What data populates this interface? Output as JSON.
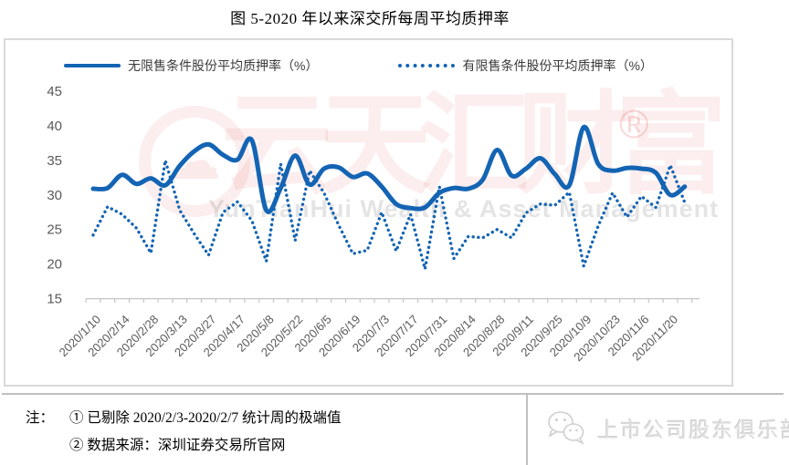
{
  "title": "图 5-2020 年以来深交所每周平均质押率",
  "chart_data": {
    "type": "line",
    "title": "图 5-2020 年以来深交所每周平均质押率",
    "ylim": [
      15,
      45
    ],
    "yticks": [
      15,
      20,
      25,
      30,
      35,
      40,
      45
    ],
    "grid": false,
    "legend_position": "top",
    "x_tick_labels": [
      "2020/1/10",
      "2020/2/14",
      "2020/2/28",
      "2020/3/13",
      "2020/3/27",
      "2020/4/17",
      "2020/5/8",
      "2020/5/22",
      "2020/6/5",
      "2020/6/19",
      "2020/7/3",
      "2020/7/17",
      "2020/7/31",
      "2020/8/14",
      "2020/8/28",
      "2020/9/11",
      "2020/9/25",
      "2020/10/9",
      "2020/10/23",
      "2020/11/6",
      "2020/11/20"
    ],
    "points_per_label": 2,
    "series": [
      {
        "name": "无限售条件股份平均质押率（%）",
        "style": "solid",
        "values": [
          30.9,
          31.0,
          32.9,
          31.6,
          32.4,
          31.4,
          34.2,
          36.3,
          37.3,
          35.8,
          35.1,
          37.9,
          27.8,
          31.0,
          35.7,
          31.5,
          33.8,
          34.0,
          32.6,
          33.1,
          31.2,
          28.7,
          28.1,
          28.2,
          30.3,
          31.0,
          30.9,
          32.2,
          36.5,
          32.8,
          33.8,
          35.3,
          33.0,
          31.4,
          39.8,
          34.5,
          33.5,
          33.9,
          33.8,
          33.2,
          30.0,
          31.2
        ]
      },
      {
        "name": "有限售条件股份平均质押率（%）",
        "style": "dotted",
        "values": [
          24.2,
          28.3,
          27.2,
          25.2,
          21.6,
          35.0,
          27.8,
          24.4,
          21.3,
          27.5,
          29.0,
          26.3,
          20.4,
          34.5,
          23.4,
          33.5,
          30.3,
          25.7,
          21.5,
          22.0,
          27.5,
          21.9,
          27.2,
          19.3,
          31.2,
          20.8,
          24.0,
          23.8,
          25.0,
          23.8,
          27.4,
          28.7,
          28.5,
          30.4,
          19.7,
          25.5,
          30.3,
          26.8,
          29.8,
          28.2,
          34.3,
          28.9
        ]
      }
    ]
  },
  "colors": {
    "line_blue": "#1464b4",
    "axis_text": "#595959",
    "axis_line": "#c6c6c6",
    "box_border": "#d9d9d9"
  },
  "watermark": {
    "cn": "云天汇财富",
    "reg": "®",
    "en": "YunTianHui Wealth & Asset Management",
    "cloud_glyph": "☁"
  },
  "notes": {
    "prefix": "注：",
    "line1": "① 已剔除 2020/2/3-2020/2/7 统计周的极端值",
    "line2": "② 数据来源：深圳证券交易所官网"
  },
  "footer": {
    "logo_text": "上市公司股东俱乐部"
  }
}
